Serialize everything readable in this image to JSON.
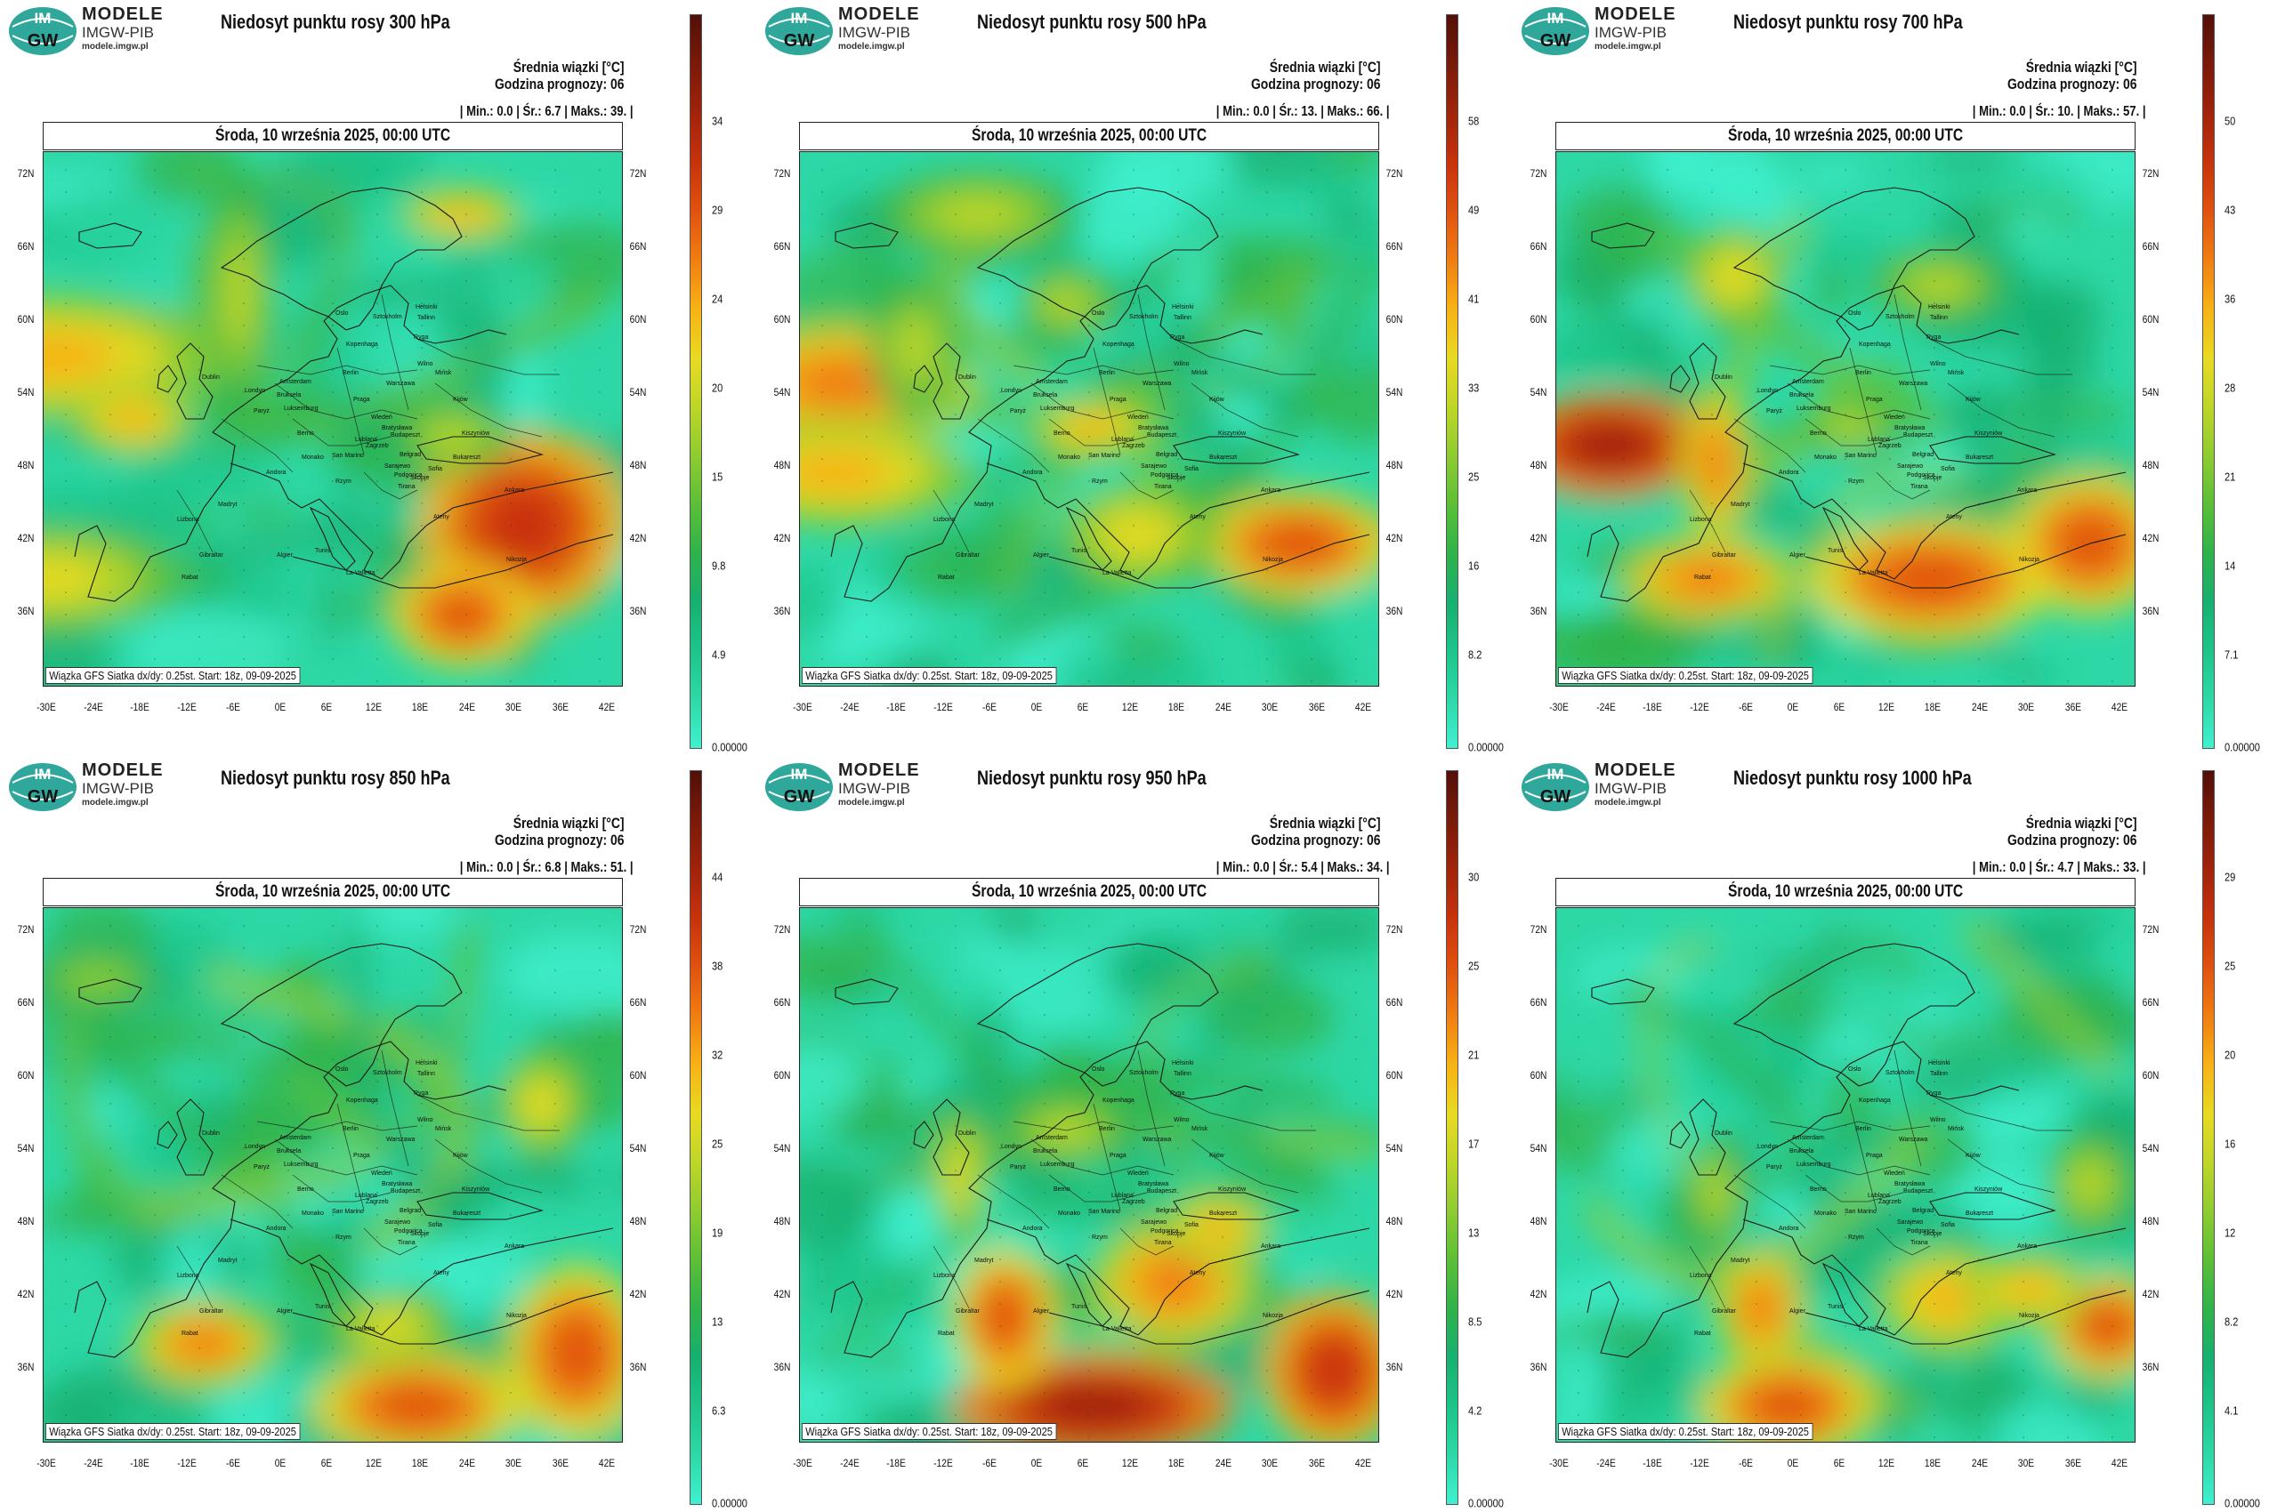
{
  "colors": {
    "scale": [
      "#40f0d0",
      "#2ed8a6",
      "#1ec48a",
      "#17b070",
      "#30b34a",
      "#5cbf37",
      "#8fcc30",
      "#bfd629",
      "#e8da22",
      "#f7b216",
      "#f07d12",
      "#e0520f",
      "#c7320c",
      "#a0230b",
      "#7a1a0a",
      "#521008"
    ]
  },
  "branding": {
    "logo_top": "IM",
    "logo_bottom": "GW",
    "brand_line1": "MODELE",
    "brand_line2": "IMGW-PIB",
    "brand_line3": "modele.imgw.pl"
  },
  "labels": {
    "avg": "Średnia wiązki [°C]",
    "hour": "Godzina prognozy: 06",
    "date": "Środa, 10 września 2025, 00:00 UTC",
    "footer": "Wiązka GFS Siatka dx/dy: 0.25st. Start: 18z, 09-09-2025"
  },
  "latitudes": [
    "72N",
    "66N",
    "60N",
    "54N",
    "48N",
    "42N",
    "36N"
  ],
  "longitudes": [
    "-30E",
    "-24E",
    "-18E",
    "-12E",
    "-6E",
    "0E",
    "6E",
    "12E",
    "18E",
    "24E",
    "30E",
    "36E",
    "42E"
  ],
  "cities": [
    "Oslo",
    "Sztokholm",
    "Helsinki",
    "Tallinn",
    "Ryga",
    "Wilno",
    "Mińsk",
    "Warszawa",
    "Berlin",
    "Kopenhaga",
    "Amsterdam",
    "Bruksela",
    "Londyn",
    "Dublin",
    "Paryż",
    "Luksemburg",
    "Praga",
    "Wiedeń",
    "Bratysława",
    "Budapeszt",
    "Kijów",
    "Kiszyniów",
    "Bukareszt",
    "Belgrad",
    "Sarajewo",
    "Zagrzeb",
    "Lublana",
    "Berno",
    "Monako",
    "San Marino",
    "Rzym",
    "Andora",
    "Madryt",
    "Lizbona",
    "Gibraltar",
    "Rabat",
    "Algier",
    "Tunis",
    "La Valletta",
    "Podgorica",
    "Tirana",
    "Skopje",
    "Sofia",
    "Ateny",
    "Ankara",
    "Nikozja"
  ],
  "panels": [
    {
      "title": "Niedosyt punktu rosy 300 hPa",
      "stats": "| Min.:     0.0 | Śr.:     6.7 | Maks.:     39. |",
      "ticks": [
        "34",
        "29",
        "24",
        "20",
        "15",
        "9.8",
        "4.9",
        "0.00000"
      ]
    },
    {
      "title": "Niedosyt punktu rosy 500 hPa",
      "stats": "| Min.:     0.0 | Śr.:     13. | Maks.:     66. |",
      "ticks": [
        "58",
        "49",
        "41",
        "33",
        "25",
        "16",
        "8.2",
        "0.00000"
      ]
    },
    {
      "title": "Niedosyt punktu rosy 700 hPa",
      "stats": "| Min.:     0.0 | Śr.:     10. | Maks.:     57. |",
      "ticks": [
        "50",
        "43",
        "36",
        "28",
        "21",
        "14",
        "7.1",
        "0.00000"
      ]
    },
    {
      "title": "Niedosyt punktu rosy 850 hPa",
      "stats": "| Min.:     0.0 | Śr.:     6.8 | Maks.:     51. |",
      "ticks": [
        "44",
        "38",
        "32",
        "25",
        "19",
        "13",
        "6.3",
        "0.00000"
      ]
    },
    {
      "title": "Niedosyt punktu rosy 950 hPa",
      "stats": "| Min.:     0.0 | Śr.:     5.4 | Maks.:     34. |",
      "ticks": [
        "30",
        "25",
        "21",
        "17",
        "13",
        "8.5",
        "4.2",
        "0.00000"
      ]
    },
    {
      "title": "Niedosyt punktu rosy 1000 hPa",
      "stats": "| Min.:     0.0 | Śr.:     4.7 | Maks.:     33. |",
      "ticks": [
        "29",
        "25",
        "20",
        "16",
        "12",
        "8.2",
        "4.1",
        "0.00000"
      ]
    }
  ]
}
